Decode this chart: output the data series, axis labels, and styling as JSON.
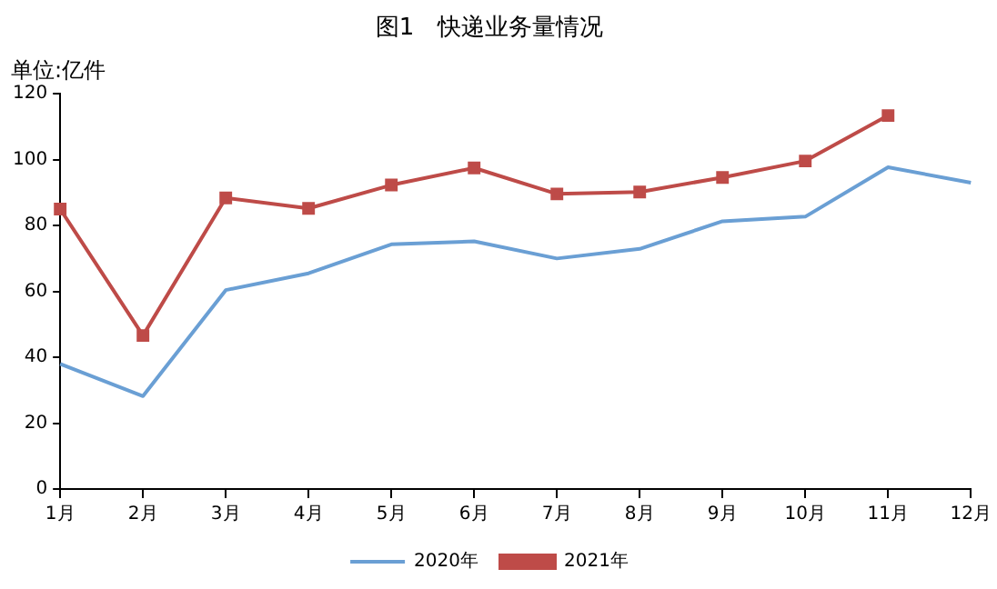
{
  "chart_data": {
    "type": "line",
    "title": "图1　快递业务量情况",
    "ylabel": "单位:亿件",
    "categories": [
      "1月",
      "2月",
      "3月",
      "4月",
      "5月",
      "6月",
      "7月",
      "8月",
      "9月",
      "10月",
      "11月",
      "12月"
    ],
    "series": [
      {
        "name": "2020年",
        "color": "#6a9fd4",
        "marker": "none",
        "values": [
          38,
          28.2,
          60.4,
          65.5,
          74.3,
          75.2,
          70,
          72.9,
          81.3,
          82.7,
          97.7,
          93
        ]
      },
      {
        "name": "2021年",
        "color": "#be4b48",
        "marker": "square",
        "values": [
          85,
          46.6,
          88.4,
          85.2,
          92.3,
          97.5,
          89.6,
          90.2,
          94.6,
          99.6,
          113.4,
          null
        ]
      }
    ],
    "ylim": [
      0,
      120
    ],
    "yticks": [
      0,
      20,
      40,
      60,
      80,
      100,
      120
    ],
    "grid": false,
    "legend": "bottom",
    "line_style": "solid"
  }
}
